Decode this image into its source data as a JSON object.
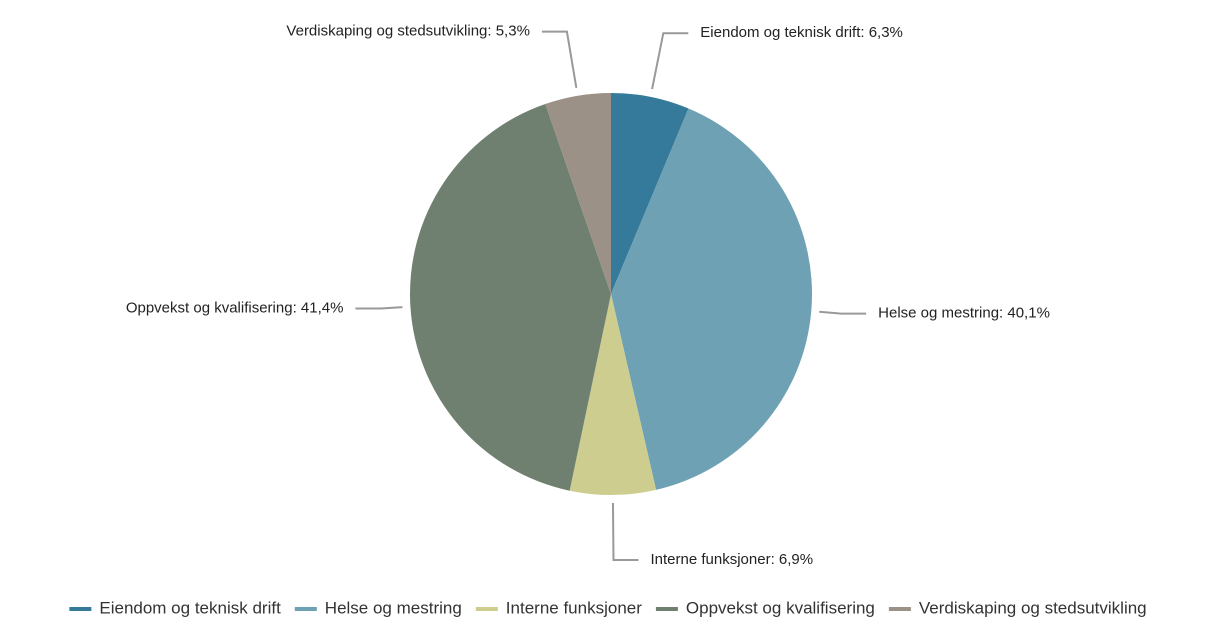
{
  "chart_data": {
    "type": "pie",
    "categories": [
      "Eiendom og teknisk drift",
      "Helse og mestring",
      "Interne funksjoner",
      "Oppvekst og kvalifisering",
      "Verdiskaping og stedsutvikling"
    ],
    "values": [
      6.3,
      40.1,
      6.9,
      41.4,
      5.3
    ],
    "value_labels": [
      "Eiendom og teknisk drift: 6,3%",
      "Helse og mestring: 40,1%",
      "Interne funksjoner: 6,9%",
      "Oppvekst og kvalifisering: 41,4%",
      "Verdiskaping og stedsutvikling: 5,3%"
    ],
    "colors": [
      "#357a9b",
      "#6fa1b4",
      "#cdcd8f",
      "#6f8070",
      "#9b9187"
    ],
    "legend": "bottom"
  }
}
